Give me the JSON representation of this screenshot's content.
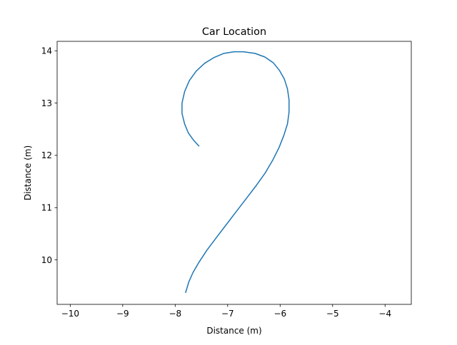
{
  "chart_data": {
    "type": "line",
    "title": "Car Location",
    "xlabel": "Distance (m)",
    "ylabel": "Distance (m)",
    "xlim": [
      -10.25,
      -3.5
    ],
    "ylim": [
      9.15,
      14.18
    ],
    "xticks": [
      -10,
      -9,
      -8,
      -7,
      -6,
      -5,
      -4
    ],
    "xtick_labels": [
      "−10",
      "−9",
      "−8",
      "−7",
      "−6",
      "−5",
      "−4"
    ],
    "yticks": [
      10,
      11,
      12,
      13,
      14
    ],
    "ytick_labels": [
      "10",
      "11",
      "12",
      "13",
      "14"
    ],
    "grid": false,
    "series": [
      {
        "color": "#1f77b4",
        "x": [
          -7.8,
          -7.74,
          -7.66,
          -7.55,
          -7.4,
          -7.22,
          -7.03,
          -6.84,
          -6.64,
          -6.45,
          -6.28,
          -6.14,
          -6.02,
          -5.93,
          -5.86,
          -5.83,
          -5.83,
          -5.86,
          -5.92,
          -6.01,
          -6.13,
          -6.29,
          -6.48,
          -6.7,
          -6.88,
          -7.07,
          -7.26,
          -7.44,
          -7.6,
          -7.73,
          -7.82,
          -7.87,
          -7.87,
          -7.82,
          -7.75,
          -7.65,
          -7.55
        ],
        "y": [
          9.38,
          9.58,
          9.76,
          9.95,
          10.18,
          10.42,
          10.67,
          10.92,
          11.18,
          11.43,
          11.67,
          11.91,
          12.15,
          12.38,
          12.6,
          12.83,
          13.06,
          13.27,
          13.46,
          13.62,
          13.77,
          13.88,
          13.95,
          13.98,
          13.98,
          13.95,
          13.87,
          13.76,
          13.61,
          13.43,
          13.22,
          13.0,
          12.8,
          12.6,
          12.43,
          12.29,
          12.18
        ]
      }
    ]
  }
}
